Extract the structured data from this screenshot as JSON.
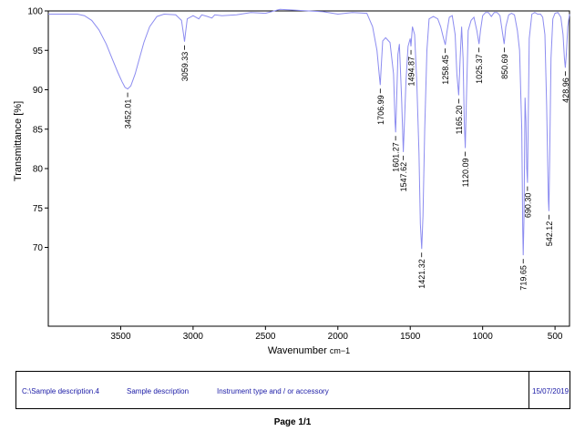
{
  "chart_data": {
    "type": "line",
    "title": "",
    "xlabel": "Wavenumber",
    "xlabel_unit": "cm−1",
    "ylabel": "Transmittance [%]",
    "xlim": [
      4000,
      400
    ],
    "ylim": [
      60,
      100
    ],
    "x_reversed": true,
    "grid": false,
    "x_ticks": [
      3500,
      3000,
      2500,
      2000,
      1500,
      1000,
      500
    ],
    "y_ticks": [
      70,
      75,
      80,
      85,
      90,
      95,
      100
    ],
    "line_color": "#8c8cf0",
    "series": [
      {
        "points": [
          [
            4000,
            99.6
          ],
          [
            3900,
            99.6
          ],
          [
            3800,
            99.6
          ],
          [
            3750,
            99.4
          ],
          [
            3700,
            98.8
          ],
          [
            3650,
            97.6
          ],
          [
            3600,
            95.8
          ],
          [
            3560,
            94.0
          ],
          [
            3520,
            92.2
          ],
          [
            3490,
            91.0
          ],
          [
            3470,
            90.3
          ],
          [
            3452,
            90.1
          ],
          [
            3430,
            90.5
          ],
          [
            3400,
            92.0
          ],
          [
            3370,
            94.0
          ],
          [
            3340,
            96.0
          ],
          [
            3300,
            98.0
          ],
          [
            3250,
            99.3
          ],
          [
            3200,
            99.6
          ],
          [
            3120,
            99.5
          ],
          [
            3080,
            98.8
          ],
          [
            3065,
            96.9
          ],
          [
            3059,
            96.1
          ],
          [
            3052,
            97.2
          ],
          [
            3040,
            99.0
          ],
          [
            3000,
            99.4
          ],
          [
            2960,
            99.0
          ],
          [
            2940,
            99.5
          ],
          [
            2900,
            99.3
          ],
          [
            2870,
            99.1
          ],
          [
            2850,
            99.5
          ],
          [
            2800,
            99.4
          ],
          [
            2700,
            99.5
          ],
          [
            2600,
            99.8
          ],
          [
            2500,
            99.7
          ],
          [
            2400,
            100.2
          ],
          [
            2300,
            100.1
          ],
          [
            2200,
            100.0
          ],
          [
            2100,
            99.9
          ],
          [
            2000,
            99.6
          ],
          [
            1900,
            99.8
          ],
          [
            1800,
            99.7
          ],
          [
            1760,
            98.0
          ],
          [
            1730,
            95.0
          ],
          [
            1715,
            92.0
          ],
          [
            1707,
            90.6
          ],
          [
            1700,
            93.0
          ],
          [
            1690,
            96.2
          ],
          [
            1670,
            96.6
          ],
          [
            1640,
            96.0
          ],
          [
            1615,
            92.0
          ],
          [
            1605,
            86.0
          ],
          [
            1601,
            84.6
          ],
          [
            1595,
            88.0
          ],
          [
            1585,
            94.5
          ],
          [
            1575,
            95.8
          ],
          [
            1560,
            89.0
          ],
          [
            1548,
            82.1
          ],
          [
            1540,
            86.0
          ],
          [
            1530,
            91.0
          ],
          [
            1515,
            95.5
          ],
          [
            1500,
            96.5
          ],
          [
            1495,
            95.5
          ],
          [
            1485,
            98.0
          ],
          [
            1470,
            97.0
          ],
          [
            1455,
            91.0
          ],
          [
            1440,
            82.0
          ],
          [
            1430,
            73.0
          ],
          [
            1421,
            69.8
          ],
          [
            1412,
            74.0
          ],
          [
            1400,
            85.0
          ],
          [
            1385,
            95.0
          ],
          [
            1370,
            99.0
          ],
          [
            1340,
            99.3
          ],
          [
            1310,
            99.0
          ],
          [
            1290,
            98.0
          ],
          [
            1270,
            96.5
          ],
          [
            1258,
            95.7
          ],
          [
            1248,
            97.2
          ],
          [
            1230,
            99.2
          ],
          [
            1210,
            99.4
          ],
          [
            1190,
            97.0
          ],
          [
            1178,
            92.0
          ],
          [
            1165,
            89.3
          ],
          [
            1155,
            94.0
          ],
          [
            1145,
            98.0
          ],
          [
            1135,
            94.0
          ],
          [
            1127,
            86.0
          ],
          [
            1120,
            82.6
          ],
          [
            1112,
            89.0
          ],
          [
            1100,
            97.5
          ],
          [
            1080,
            98.8
          ],
          [
            1060,
            99.2
          ],
          [
            1040,
            97.5
          ],
          [
            1025,
            95.8
          ],
          [
            1015,
            97.5
          ],
          [
            1000,
            99.4
          ],
          [
            980,
            99.8
          ],
          [
            960,
            99.8
          ],
          [
            940,
            99.3
          ],
          [
            920,
            99.8
          ],
          [
            900,
            99.8
          ],
          [
            880,
            99.4
          ],
          [
            865,
            97.5
          ],
          [
            851,
            95.8
          ],
          [
            840,
            98.0
          ],
          [
            820,
            99.5
          ],
          [
            800,
            99.7
          ],
          [
            780,
            99.5
          ],
          [
            760,
            97.5
          ],
          [
            745,
            95.0
          ],
          [
            730,
            85.0
          ],
          [
            723,
            72.0
          ],
          [
            719.65,
            69.0
          ],
          [
            714,
            74.0
          ],
          [
            707,
            89.0
          ],
          [
            701,
            86.0
          ],
          [
            695,
            80.0
          ],
          [
            690.3,
            78.2
          ],
          [
            685,
            86.0
          ],
          [
            678,
            96.5
          ],
          [
            660,
            99.6
          ],
          [
            640,
            99.8
          ],
          [
            620,
            99.6
          ],
          [
            600,
            99.6
          ],
          [
            585,
            99.2
          ],
          [
            570,
            97.0
          ],
          [
            558,
            88.0
          ],
          [
            546,
            76.0
          ],
          [
            542.12,
            74.6
          ],
          [
            537,
            81.0
          ],
          [
            528,
            94.0
          ],
          [
            515,
            99.0
          ],
          [
            500,
            99.7
          ],
          [
            480,
            99.8
          ],
          [
            460,
            99.2
          ],
          [
            445,
            97.0
          ],
          [
            435,
            94.0
          ],
          [
            428.96,
            92.8
          ],
          [
            422,
            94.5
          ],
          [
            412,
            98.0
          ],
          [
            400,
            99.6
          ]
        ]
      }
    ],
    "peak_labels": [
      {
        "label": "3452.01",
        "x": 3452.01,
        "y": 90.1
      },
      {
        "label": "3059.33",
        "x": 3059.33,
        "y": 96.1
      },
      {
        "label": "1706.99",
        "x": 1706.99,
        "y": 90.6
      },
      {
        "label": "1601.27",
        "x": 1601.27,
        "y": 84.6
      },
      {
        "label": "1547.62",
        "x": 1547.62,
        "y": 82.1
      },
      {
        "label": "1494.87",
        "x": 1494.87,
        "y": 95.5
      },
      {
        "label": "1421.32",
        "x": 1421.32,
        "y": 69.8
      },
      {
        "label": "1258.45",
        "x": 1258.45,
        "y": 95.7
      },
      {
        "label": "1165.20",
        "x": 1165.2,
        "y": 89.3
      },
      {
        "label": "1120.09",
        "x": 1120.09,
        "y": 82.6
      },
      {
        "label": "1025.37",
        "x": 1025.37,
        "y": 95.8
      },
      {
        "label": "850.69",
        "x": 850.69,
        "y": 95.8
      },
      {
        "label": "719.65",
        "x": 719.65,
        "y": 69.0
      },
      {
        "label": "690.30",
        "x": 690.3,
        "y": 78.2
      },
      {
        "label": "542.12",
        "x": 542.12,
        "y": 74.6
      },
      {
        "label": "428.96",
        "x": 428.96,
        "y": 92.8
      }
    ]
  },
  "info_bar": {
    "path": "C:\\Sample description.4",
    "sample": "Sample description",
    "instrument": "Instrument type and / or accessory",
    "date": "15/07/2019"
  },
  "footer": {
    "page": "Page 1/1"
  }
}
